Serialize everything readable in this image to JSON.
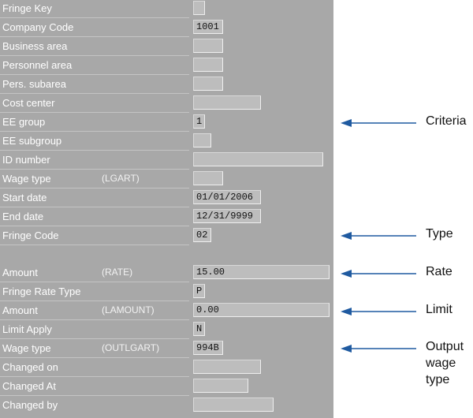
{
  "form": {
    "fields": [
      {
        "label": "Fringe Key",
        "tech": "",
        "value": ""
      },
      {
        "label": "Company Code",
        "tech": "",
        "value": "1001"
      },
      {
        "label": "Business area",
        "tech": "",
        "value": ""
      },
      {
        "label": "Personnel area",
        "tech": "",
        "value": ""
      },
      {
        "label": "Pers. subarea",
        "tech": "",
        "value": ""
      },
      {
        "label": "Cost center",
        "tech": "",
        "value": ""
      },
      {
        "label": "EE group",
        "tech": "",
        "value": "1"
      },
      {
        "label": "EE subgroup",
        "tech": "",
        "value": ""
      },
      {
        "label": "ID number",
        "tech": "",
        "value": ""
      },
      {
        "label": "Wage type",
        "tech": "(LGART)",
        "value": ""
      },
      {
        "label": "Start date",
        "tech": "",
        "value": "01/01/2006"
      },
      {
        "label": "End date",
        "tech": "",
        "value": "12/31/9999"
      },
      {
        "label": "Fringe Code",
        "tech": "",
        "value": "02"
      },
      {
        "label": "Amount",
        "tech": "(RATE)",
        "value": "15.00"
      },
      {
        "label": "Fringe Rate Type",
        "tech": "",
        "value": "P"
      },
      {
        "label": "Amount",
        "tech": "(LAMOUNT)",
        "value": "0.00"
      },
      {
        "label": "Limit Apply",
        "tech": "",
        "value": "N"
      },
      {
        "label": "Wage type",
        "tech": "(OUTLGART)",
        "value": "994B"
      },
      {
        "label": "Changed on",
        "tech": "",
        "value": ""
      },
      {
        "label": "Changed At",
        "tech": "",
        "value": ""
      },
      {
        "label": "Changed by",
        "tech": "",
        "value": ""
      }
    ]
  },
  "annotations": [
    {
      "text": "Criteria"
    },
    {
      "text": "Type"
    },
    {
      "text": "Rate"
    },
    {
      "text": "Limit"
    },
    {
      "text": "Output\nwage\ntype"
    }
  ],
  "colors": {
    "panel": "#a8a8a8",
    "field": "#bdbdbd",
    "arrow": "#1f5aa0"
  }
}
